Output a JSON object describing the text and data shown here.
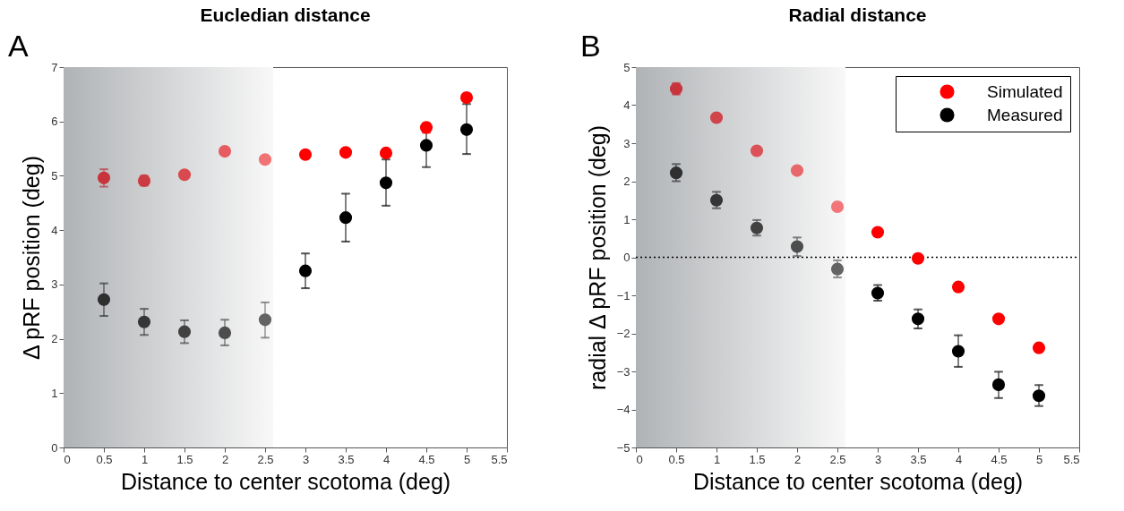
{
  "chart_data": [
    {
      "type": "scatter",
      "title": "Eucledian distance",
      "xlabel": "Distance to center scotoma (deg)",
      "ylabel": "Δ pRF position (deg)",
      "annotations": [
        "A"
      ],
      "x": [
        0.5,
        1,
        1.5,
        2,
        2.5,
        3,
        3.5,
        4,
        4.5,
        5
      ],
      "xlim": [
        0,
        5.5
      ],
      "xticks": [
        0,
        0.5,
        1,
        1.5,
        2,
        2.5,
        3,
        3.5,
        4,
        4.5,
        5,
        5.5
      ],
      "ylim": [
        0,
        7
      ],
      "yticks": [
        0,
        1,
        2,
        3,
        4,
        5,
        6,
        7
      ],
      "marker": "circle",
      "grid": false,
      "bands": [
        {
          "axis": "x",
          "from": 0,
          "to": 2.6,
          "color": "#b0b3b6"
        }
      ],
      "series": [
        {
          "colors": [
            "#c8343c",
            "#cc3b42",
            "#d84a4f",
            "#e65d61",
            "#f27376",
            "#ff0000",
            "#ff0000",
            "#ff0000",
            "#ff0000",
            "#ff0000"
          ],
          "values": [
            4.96,
            4.91,
            5.02,
            5.45,
            5.3,
            5.39,
            5.43,
            5.42,
            5.89,
            6.44
          ],
          "errors": [
            [
              4.8,
              5.12
            ],
            [
              4.82,
              5.0
            ],
            null,
            null,
            null,
            null,
            null,
            null,
            [
              5.79,
              5.97
            ],
            null
          ]
        },
        {
          "colors": [
            "#2f2f2f",
            "#363636",
            "#414141",
            "#4d4d4d",
            "#646464",
            "#000000",
            "#000000",
            "#000000",
            "#000000",
            "#000000"
          ],
          "values": [
            2.72,
            2.31,
            2.13,
            2.11,
            2.35,
            3.25,
            4.23,
            4.87,
            5.56,
            5.85
          ],
          "errors": [
            [
              2.42,
              3.02
            ],
            [
              2.07,
              2.55
            ],
            [
              1.92,
              2.34
            ],
            [
              1.88,
              2.35
            ],
            [
              2.02,
              2.67
            ],
            [
              2.93,
              3.57
            ],
            [
              3.79,
              4.67
            ],
            [
              4.45,
              5.3
            ],
            [
              5.16,
              5.96
            ],
            [
              5.4,
              6.32
            ]
          ]
        }
      ]
    },
    {
      "type": "scatter",
      "title": "Radial distance",
      "xlabel": "Distance to center scotoma (deg)",
      "ylabel": "radial Δ pRF position (deg)",
      "annotations": [
        "B"
      ],
      "x": [
        0.5,
        1,
        1.5,
        2,
        2.5,
        3,
        3.5,
        4,
        4.5,
        5
      ],
      "xlim": [
        0,
        5.5
      ],
      "xticks": [
        0,
        0.5,
        1,
        1.5,
        2,
        2.5,
        3,
        3.5,
        4,
        4.5,
        5,
        5.5
      ],
      "ylim": [
        -5,
        5
      ],
      "yticks": [
        -5,
        -4,
        -3,
        -2,
        -1,
        0,
        1,
        2,
        3,
        4,
        5
      ],
      "marker": "circle",
      "grid": false,
      "legend": "top right",
      "bands": [
        {
          "axis": "x",
          "from": 0,
          "to": 2.6,
          "color": "#b0b3b6"
        }
      ],
      "ref_lines": [
        {
          "axis": "y",
          "value": 0,
          "line_style": "dotted",
          "color": "#000000"
        }
      ],
      "series": [
        {
          "name": "Simulated",
          "color": "#ff0000",
          "colors": [
            "#c8343c",
            "#d0444a",
            "#db5358",
            "#e8676b",
            "#f27679",
            "#ff0000",
            "#ff0000",
            "#ff0000",
            "#ff0000",
            "#ff0000"
          ],
          "values": [
            4.43,
            3.67,
            2.8,
            2.28,
            1.33,
            0.66,
            -0.03,
            -0.78,
            -1.62,
            -2.38
          ],
          "errors": [
            [
              4.28,
              4.58
            ],
            null,
            null,
            null,
            null,
            null,
            null,
            null,
            null,
            null
          ]
        },
        {
          "name": "Measured",
          "color": "#000000",
          "colors": [
            "#2f2f2f",
            "#363636",
            "#414141",
            "#4d4d4d",
            "#646464",
            "#000000",
            "#000000",
            "#000000",
            "#000000",
            "#000000"
          ],
          "values": [
            2.22,
            1.5,
            0.77,
            0.28,
            -0.31,
            -0.94,
            -1.62,
            -2.47,
            -3.35,
            -3.64
          ],
          "errors": [
            [
              2.0,
              2.45
            ],
            [
              1.29,
              1.72
            ],
            [
              0.57,
              0.98
            ],
            [
              0.03,
              0.52
            ],
            [
              -0.53,
              -0.08
            ],
            [
              -1.14,
              -0.73
            ],
            [
              -1.87,
              -1.37
            ],
            [
              -2.88,
              -2.05
            ],
            [
              -3.7,
              -3.01
            ],
            [
              -3.91,
              -3.36
            ]
          ]
        }
      ]
    }
  ]
}
